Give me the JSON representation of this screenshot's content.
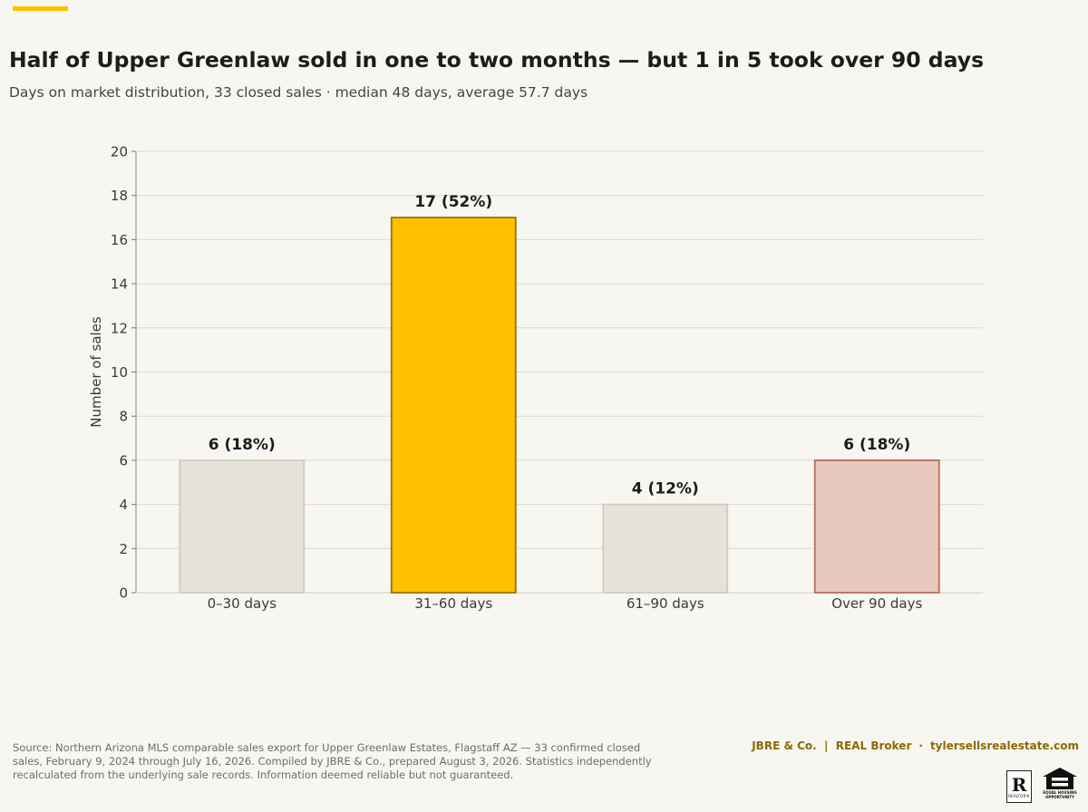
{
  "header": {
    "title": "Half of Upper Greenlaw sold in one to two months — but 1 in 5 took over 90 days",
    "subtitle": "Days on market distribution, 33 closed sales · median 48 days, average 57.7 days"
  },
  "colors": {
    "accent": "#ffc000",
    "highlight_bar": "#ffc000",
    "highlight_stroke": "#9a7400",
    "neutral_bar": "#e5e2d8",
    "neutral_stroke": "#cfccbf",
    "warning_bar": "#e8c9bf",
    "warning_stroke": "#b5705a",
    "brand_text": "#8b6a00"
  },
  "chart_data": {
    "type": "bar",
    "categories": [
      "0–30 days",
      "31–60 days",
      "61–90 days",
      "Over 90 days"
    ],
    "values": [
      6,
      17,
      4,
      6
    ],
    "data_labels": [
      "6  (18%)",
      "17  (52%)",
      "4  (12%)",
      "6  (18%)"
    ],
    "bar_styles": [
      "neutral",
      "highlight",
      "neutral",
      "warning"
    ],
    "ylabel": "Number of sales",
    "xlabel": "",
    "ylim": [
      0,
      20
    ],
    "yticks": [
      0,
      2,
      4,
      6,
      8,
      10,
      12,
      14,
      16,
      18,
      20
    ],
    "grid": true,
    "legend": "none"
  },
  "footer": {
    "source": "Source: Northern Arizona MLS comparable sales export for Upper Greenlaw Estates, Flagstaff AZ — 33 confirmed closed sales, February 9, 2024 through July 16, 2026. Compiled by JBRE & Co., prepared August 3, 2026. Statistics independently recalculated from the underlying sale records. Information deemed reliable but not guaranteed.",
    "brand_left": "JBRE & Co.  |  REAL Broker",
    "brand_separator": "·",
    "brand_right": "tylersellsrealestate.com",
    "realtor_mark": "R",
    "realtor_text": "REALTOR®",
    "eho_text": "EQUAL HOUSING OPPORTUNITY"
  }
}
